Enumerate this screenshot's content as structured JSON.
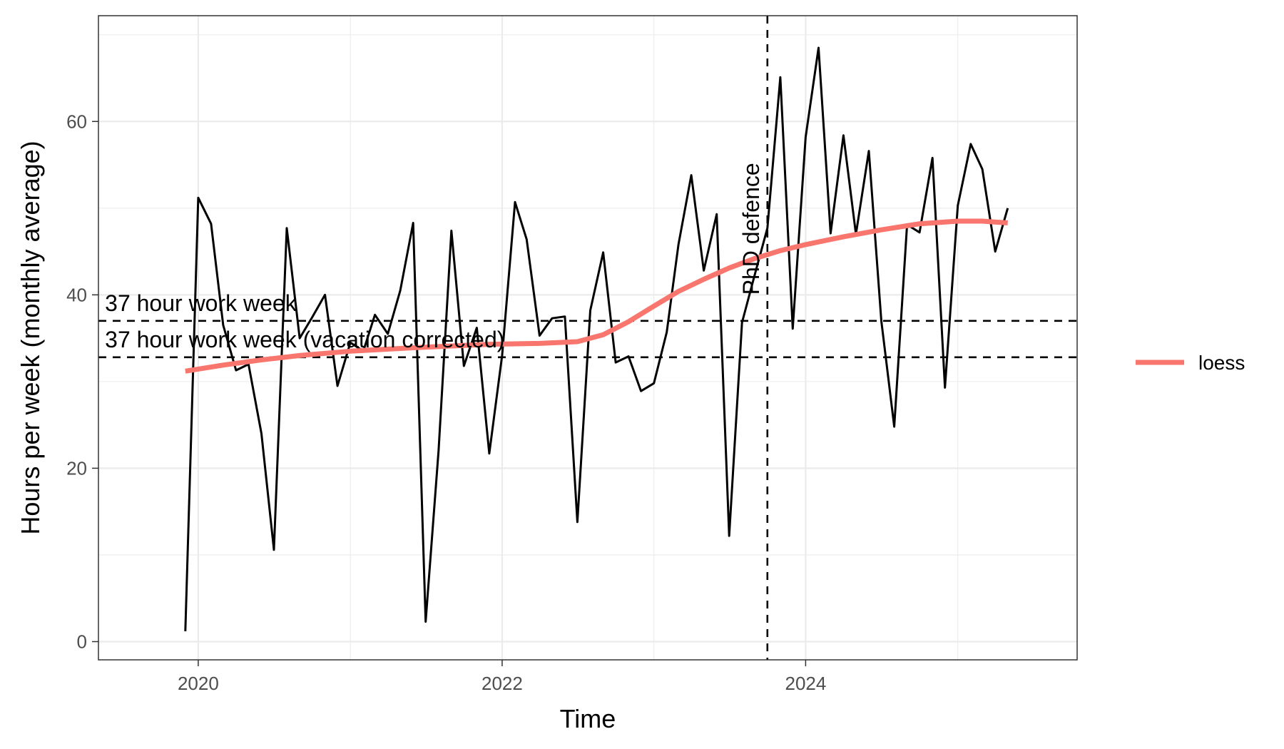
{
  "chart_data": {
    "type": "line",
    "xlabel": "Time",
    "ylabel": "Hours per week (monthly average)",
    "x_ticks": [
      "2020",
      "2022",
      "2024"
    ],
    "y_ticks": [
      "0",
      "20",
      "40",
      "60"
    ],
    "xlim": [
      "2019-05-06",
      "2025-10-15"
    ],
    "ylim": [
      -2.1,
      72.2
    ],
    "grid": true,
    "theme": "bw",
    "legend_position": "right",
    "series": [
      {
        "name": "",
        "color": "#000000",
        "points": [
          [
            "2019-12-01",
            1.2
          ],
          [
            "2020-01-01",
            51.2
          ],
          [
            "2020-02-01",
            48.2
          ],
          [
            "2020-03-01",
            36.5
          ],
          [
            "2020-04-01",
            31.3
          ],
          [
            "2020-05-01",
            32.0
          ],
          [
            "2020-06-01",
            24.0
          ],
          [
            "2020-07-01",
            10.6
          ],
          [
            "2020-08-01",
            47.7
          ],
          [
            "2020-09-01",
            35.0
          ],
          [
            "2020-10-01",
            37.4
          ],
          [
            "2020-11-01",
            40.0
          ],
          [
            "2020-12-01",
            29.5
          ],
          [
            "2021-01-01",
            34.5
          ],
          [
            "2021-02-01",
            33.5
          ],
          [
            "2021-03-01",
            37.7
          ],
          [
            "2021-04-01",
            35.5
          ],
          [
            "2021-05-01",
            40.5
          ],
          [
            "2021-06-01",
            48.3
          ],
          [
            "2021-07-01",
            2.3
          ],
          [
            "2021-08-01",
            22.0
          ],
          [
            "2021-09-01",
            47.4
          ],
          [
            "2021-10-01",
            31.8
          ],
          [
            "2021-11-01",
            36.2
          ],
          [
            "2021-12-01",
            21.7
          ],
          [
            "2022-01-01",
            33.0
          ],
          [
            "2022-02-01",
            50.7
          ],
          [
            "2022-03-01",
            46.4
          ],
          [
            "2022-04-01",
            35.3
          ],
          [
            "2022-05-01",
            37.3
          ],
          [
            "2022-06-01",
            37.5
          ],
          [
            "2022-07-01",
            13.8
          ],
          [
            "2022-08-01",
            38.2
          ],
          [
            "2022-09-01",
            44.9
          ],
          [
            "2022-10-01",
            32.2
          ],
          [
            "2022-11-01",
            32.9
          ],
          [
            "2022-12-01",
            28.9
          ],
          [
            "2023-01-01",
            29.8
          ],
          [
            "2023-02-01",
            35.7
          ],
          [
            "2023-03-01",
            45.8
          ],
          [
            "2023-04-01",
            53.8
          ],
          [
            "2023-05-01",
            42.8
          ],
          [
            "2023-06-01",
            49.3
          ],
          [
            "2023-07-01",
            12.2
          ],
          [
            "2023-08-01",
            36.8
          ],
          [
            "2023-09-01",
            42.4
          ],
          [
            "2023-10-01",
            47.7
          ],
          [
            "2023-11-01",
            65.1
          ],
          [
            "2023-12-01",
            36.1
          ],
          [
            "2024-01-01",
            58.2
          ],
          [
            "2024-02-01",
            68.5
          ],
          [
            "2024-03-01",
            47.1
          ],
          [
            "2024-04-01",
            58.4
          ],
          [
            "2024-05-01",
            47.0
          ],
          [
            "2024-06-01",
            56.6
          ],
          [
            "2024-07-01",
            37.0
          ],
          [
            "2024-08-01",
            24.8
          ],
          [
            "2024-09-01",
            48.1
          ],
          [
            "2024-10-01",
            47.2
          ],
          [
            "2024-11-01",
            55.8
          ],
          [
            "2024-12-01",
            29.3
          ],
          [
            "2025-01-01",
            50.3
          ],
          [
            "2025-02-01",
            57.4
          ],
          [
            "2025-03-01",
            54.5
          ],
          [
            "2025-04-01",
            45.0
          ],
          [
            "2025-05-01",
            50.0
          ]
        ]
      },
      {
        "name": "loess",
        "color": "#F8766D",
        "points": [
          [
            "2019-12-01",
            31.2
          ],
          [
            "2020-03-01",
            31.9
          ],
          [
            "2020-06-01",
            32.5
          ],
          [
            "2020-09-01",
            33.0
          ],
          [
            "2021-01-01",
            33.5
          ],
          [
            "2021-06-01",
            33.9
          ],
          [
            "2021-12-01",
            34.3
          ],
          [
            "2022-04-01",
            34.4
          ],
          [
            "2022-07-01",
            34.6
          ],
          [
            "2022-09-01",
            35.4
          ],
          [
            "2022-11-01",
            36.9
          ],
          [
            "2023-01-01",
            38.7
          ],
          [
            "2023-03-01",
            40.4
          ],
          [
            "2023-05-01",
            41.8
          ],
          [
            "2023-07-01",
            43.1
          ],
          [
            "2023-09-01",
            44.2
          ],
          [
            "2023-11-01",
            45.1
          ],
          [
            "2024-01-01",
            45.8
          ],
          [
            "2024-04-01",
            46.7
          ],
          [
            "2024-07-01",
            47.5
          ],
          [
            "2024-10-01",
            48.2
          ],
          [
            "2025-01-01",
            48.5
          ],
          [
            "2025-03-01",
            48.5
          ],
          [
            "2025-05-01",
            48.3
          ]
        ]
      }
    ],
    "hlines": [
      {
        "y": 37,
        "label": "37 hour work week",
        "style": "dashed"
      },
      {
        "y": 32.8,
        "label": "37 hour work week (vacation corrected)",
        "style": "dashed"
      }
    ],
    "vlines": [
      {
        "x": "2023-10-01",
        "label": "PhD defence",
        "style": "dashed"
      }
    ],
    "legend": [
      {
        "label": "loess",
        "color": "#F8766D"
      }
    ]
  }
}
